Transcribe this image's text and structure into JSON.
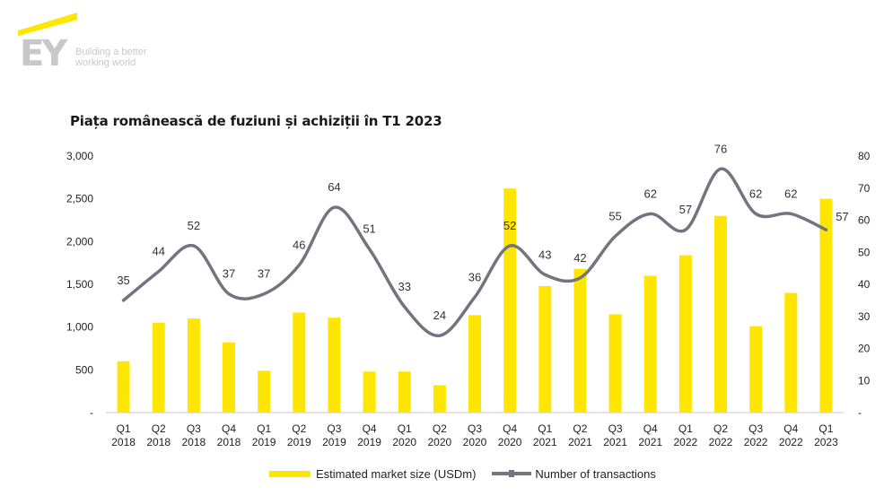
{
  "branding": {
    "logo_text": "EY",
    "tagline_line1": "Building a better",
    "tagline_line2": "working world",
    "logo_color": "#c8c8c8",
    "accent_color": "#ffe600"
  },
  "chart_data": {
    "type": "bar",
    "title": "Piața românească de fuziuni și achiziții în T1 2023",
    "categories": [
      "Q1 2018",
      "Q2 2018",
      "Q3 2018",
      "Q4 2018",
      "Q1 2019",
      "Q2 2019",
      "Q3 2019",
      "Q4 2019",
      "Q1 2020",
      "Q2 2020",
      "Q3 2020",
      "Q4 2020",
      "Q1 2021",
      "Q2 2021",
      "Q3 2021",
      "Q4 2021",
      "Q1 2022",
      "Q2 2022",
      "Q3 2022",
      "Q4 2022",
      "Q1 2023"
    ],
    "category_lines": [
      [
        "Q1",
        "2018"
      ],
      [
        "Q2",
        "2018"
      ],
      [
        "Q3",
        "2018"
      ],
      [
        "Q4",
        "2018"
      ],
      [
        "Q1",
        "2019"
      ],
      [
        "Q2",
        "2019"
      ],
      [
        "Q3",
        "2019"
      ],
      [
        "Q4",
        "2019"
      ],
      [
        "Q1",
        "2020"
      ],
      [
        "Q2",
        "2020"
      ],
      [
        "Q3",
        "2020"
      ],
      [
        "Q4",
        "2020"
      ],
      [
        "Q1",
        "2021"
      ],
      [
        "Q2",
        "2021"
      ],
      [
        "Q3",
        "2021"
      ],
      [
        "Q4",
        "2021"
      ],
      [
        "Q1",
        "2022"
      ],
      [
        "Q2",
        "2022"
      ],
      [
        "Q3",
        "2022"
      ],
      [
        "Q4",
        "2022"
      ],
      [
        "Q1",
        "2023"
      ]
    ],
    "series": [
      {
        "name": "Estimated market size (USDm)",
        "kind": "bar",
        "axis": "left",
        "color": "#ffe600",
        "values": [
          600,
          1050,
          1100,
          820,
          490,
          1170,
          1110,
          480,
          480,
          320,
          1140,
          2620,
          1480,
          1680,
          1150,
          1600,
          1840,
          2300,
          1010,
          1400,
          2500
        ]
      },
      {
        "name": "Number of transactions",
        "kind": "line",
        "axis": "right",
        "color": "#747480",
        "values": [
          35,
          44,
          52,
          37,
          37,
          46,
          64,
          51,
          33,
          24,
          36,
          52,
          43,
          42,
          55,
          62,
          57,
          76,
          62,
          62,
          57
        ]
      }
    ],
    "y_left": {
      "min": 0,
      "max": 3000,
      "ticks": [
        "-",
        "500",
        "1,000",
        "1,500",
        "2,000",
        "2,500",
        "3,000"
      ]
    },
    "y_right": {
      "min": 0,
      "max": 80,
      "ticks": [
        "-",
        "10",
        "20",
        "30",
        "40",
        "50",
        "60",
        "70",
        "80"
      ]
    },
    "grid": false,
    "legend_position": "bottom"
  }
}
